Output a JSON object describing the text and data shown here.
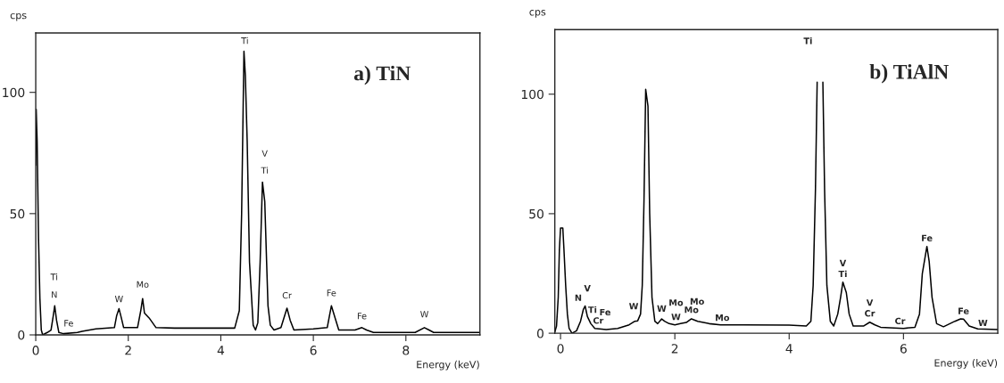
{
  "chart_data": [
    {
      "type": "line",
      "title": "a) TiN",
      "xlabel": "Energy (keV)",
      "ylabel": "cps",
      "xlim": [
        0,
        9.6
      ],
      "ylim": [
        0,
        124.5
      ],
      "xticks": [
        0,
        2,
        4,
        6,
        8
      ],
      "yticks": [
        0,
        50,
        100
      ],
      "grid": false,
      "legend": false,
      "marker": "none",
      "line_style": "solid",
      "series": [
        {
          "color": "#000000",
          "x": [
            0.0,
            0.01,
            0.03,
            0.06,
            0.09,
            0.12,
            0.15,
            0.25,
            0.33,
            0.38,
            0.41,
            0.45,
            0.5,
            0.6,
            0.9,
            1.0,
            1.3,
            1.7,
            1.75,
            1.8,
            1.85,
            1.9,
            2.0,
            2.2,
            2.27,
            2.31,
            2.35,
            2.45,
            2.6,
            3.0,
            4.3,
            4.4,
            4.45,
            4.48,
            4.5,
            4.53,
            4.57,
            4.62,
            4.7,
            4.75,
            4.8,
            4.85,
            4.9,
            4.95,
            4.99,
            5.02,
            5.07,
            5.15,
            5.3,
            5.43,
            5.5,
            5.58,
            6.0,
            6.3,
            6.35,
            6.39,
            6.47,
            6.55,
            6.9,
            7.05,
            7.15,
            7.3,
            8.2,
            8.4,
            8.5,
            8.6,
            9.6
          ],
          "values": [
            70,
            93,
            80,
            40,
            15,
            2,
            0,
            1,
            2,
            8,
            12,
            6,
            1,
            0.5,
            1,
            1.5,
            2.5,
            3,
            8,
            10.8,
            7,
            3,
            3,
            3,
            10,
            15,
            9,
            7,
            3,
            2.8,
            2.8,
            10,
            50,
            90,
            117,
            107,
            80,
            30,
            4,
            2,
            5,
            30,
            63,
            55,
            30,
            12,
            4,
            2,
            3,
            11,
            6,
            2,
            2.5,
            3,
            8,
            12,
            7,
            2,
            2,
            3,
            2,
            1,
            1,
            3,
            2,
            1,
            1
          ]
        }
      ],
      "annotations": [
        "Ti",
        "N",
        "Fe",
        "W",
        "Mo",
        "Ti",
        "V",
        "Ti",
        "Cr",
        "Fe",
        "Fe",
        "W"
      ]
    },
    {
      "type": "line",
      "title": "b) TiAlN",
      "xlabel": "Energy (keV)",
      "ylabel": "cps",
      "xlim": [
        -0.1,
        7.65
      ],
      "ylim": [
        0,
        127
      ],
      "xticks": [
        0,
        2,
        4,
        6
      ],
      "yticks": [
        0,
        50,
        100
      ],
      "grid": false,
      "legend": false,
      "marker": "none",
      "line_style": "solid",
      "series": [
        {
          "color": "#000000",
          "x": [
            -0.1,
            -0.07,
            -0.04,
            -0.02,
            0.0,
            0.04,
            0.06,
            0.09,
            0.12,
            0.15,
            0.2,
            0.28,
            0.35,
            0.4,
            0.43,
            0.47,
            0.53,
            0.6,
            0.8,
            1.0,
            1.2,
            1.3,
            1.35,
            1.4,
            1.43,
            1.46,
            1.49,
            1.53,
            1.56,
            1.6,
            1.65,
            1.7,
            1.77,
            1.82,
            1.9,
            2.0,
            2.1,
            2.2,
            2.29,
            2.4,
            2.6,
            2.8,
            3.2,
            4.0,
            4.3,
            4.38,
            4.42,
            4.46,
            4.49,
            4.52,
            4.56,
            4.59,
            4.62,
            4.66,
            4.72,
            4.78,
            4.85,
            4.9,
            4.94,
            5.0,
            5.05,
            5.12,
            5.3,
            5.41,
            5.5,
            5.6,
            6.0,
            6.2,
            6.28,
            6.33,
            6.41,
            6.45,
            6.5,
            6.58,
            6.7,
            6.9,
            7.0,
            7.05,
            7.15,
            7.3,
            7.65
          ],
          "values": [
            0.5,
            3,
            15,
            35,
            44,
            44,
            35,
            20,
            8,
            2,
            0,
            1,
            5,
            10,
            11.4,
            7,
            4,
            2,
            1.5,
            2,
            3.5,
            5,
            5.2,
            8,
            20,
            55,
            102,
            95,
            50,
            15,
            5,
            4,
            6,
            5,
            4,
            3.5,
            4,
            4.5,
            6,
            5,
            4,
            3.5,
            3.5,
            3.4,
            3,
            5,
            20,
            60,
            105,
            null,
            null,
            105,
            60,
            20,
            5,
            3,
            8,
            15,
            21.4,
            17,
            8,
            3,
            3,
            4.6,
            3.5,
            2.5,
            2,
            2.5,
            8,
            25,
            36.3,
            30,
            15,
            4,
            2.7,
            5,
            6,
            5.9,
            3,
            1.8,
            1.5
          ]
        }
      ],
      "annotations": [
        "V",
        "N",
        "Ti",
        "Fe",
        "Cr",
        "W",
        "W",
        "Mo",
        "Mo",
        "W",
        "Mo",
        "Mo",
        "Ti",
        "V",
        "Ti",
        "V",
        "Cr",
        "Cr",
        "Fe",
        "Fe",
        "W"
      ]
    }
  ]
}
